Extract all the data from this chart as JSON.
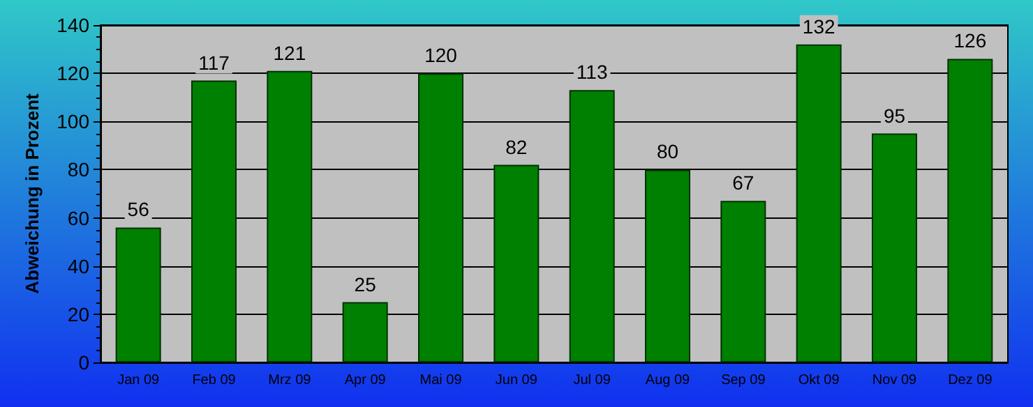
{
  "chart_data": {
    "type": "bar",
    "ylabel": "Abweichung in Prozent",
    "categories": [
      "Jan 09",
      "Feb 09",
      "Mrz 09",
      "Apr 09",
      "Mai 09",
      "Jun 09",
      "Jul 09",
      "Aug 09",
      "Sep 09",
      "Okt 09",
      "Nov 09",
      "Dez 09"
    ],
    "values": [
      56,
      117,
      121,
      25,
      120,
      82,
      113,
      80,
      67,
      132,
      95,
      126
    ],
    "color": "#008000",
    "ylim": [
      0,
      140
    ],
    "yticks": [
      0,
      20,
      40,
      60,
      80,
      100,
      120,
      140
    ],
    "grid": "y",
    "data_labels": true
  }
}
